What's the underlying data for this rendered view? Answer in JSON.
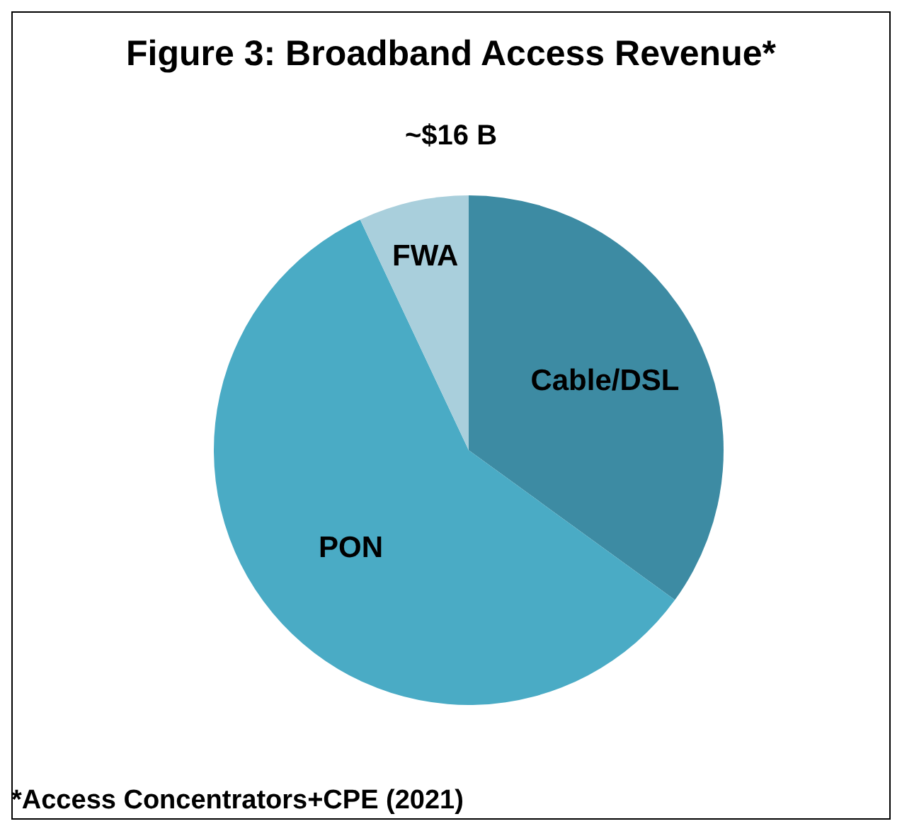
{
  "chart_data": {
    "type": "pie",
    "title": "Figure 3: Broadband Access Revenue*",
    "subtitle": "~$16 B",
    "categories": [
      "Cable/DSL",
      "PON",
      "FWA"
    ],
    "values": [
      35,
      58,
      7
    ],
    "colors": [
      "#3d8ba3",
      "#4aabc5",
      "#a9cfdc"
    ],
    "annotations": [
      "*Access Concentrators+CPE (2021)"
    ]
  }
}
